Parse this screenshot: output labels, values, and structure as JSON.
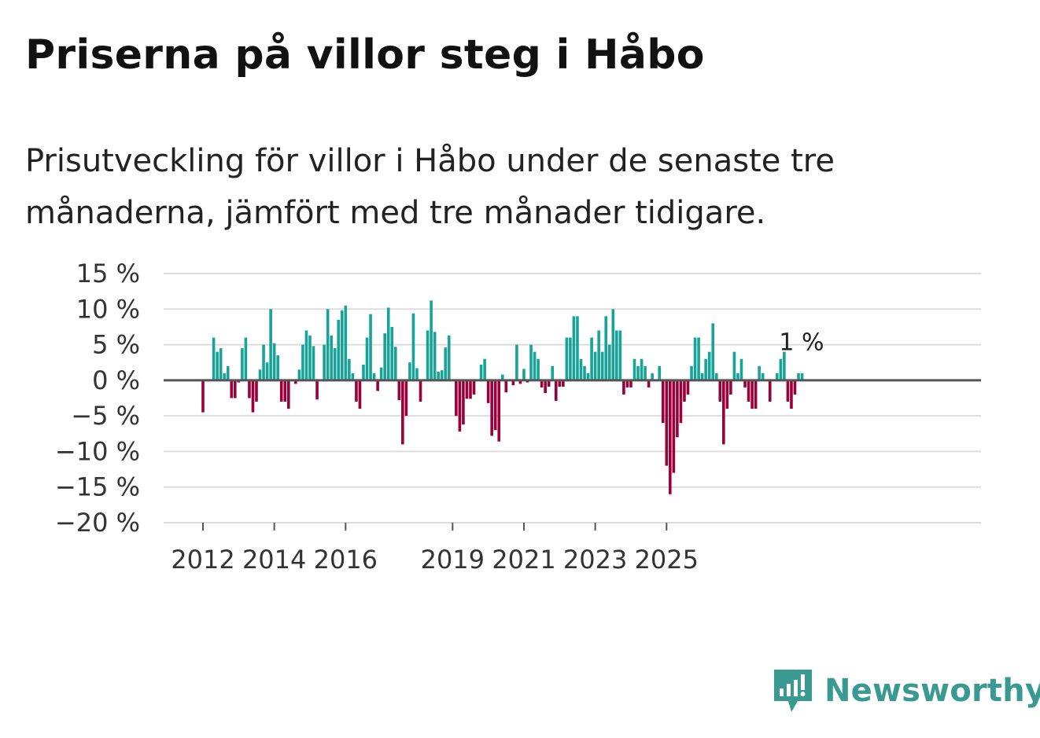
{
  "title": "Priserna på villor steg i Håbo",
  "subtitle": "Prisutveckling för villor i Håbo under de senaste tre månaderna, jämfört med tre månader tidigare.",
  "brand": "Newsworthy",
  "colors": {
    "positive": "#17a398",
    "negative": "#9b0038",
    "grid": "#dddddd",
    "zero_line": "#555555",
    "logo": "#3a9a92"
  },
  "chart_data": {
    "type": "bar",
    "title": "Priserna på villor steg i Håbo",
    "xlabel": "",
    "ylabel": "",
    "unit": "%",
    "ylim": [
      -20,
      15
    ],
    "y_ticks": [
      15,
      10,
      5,
      0,
      -5,
      -10,
      -15,
      -20
    ],
    "y_tick_labels": [
      "15 %",
      "10 %",
      "5 %",
      "0 %",
      "−5 %",
      "−10 %",
      "−15 %",
      "−20 %"
    ],
    "x_ticks": [
      "2012",
      "2014",
      "2016",
      "2019",
      "2021",
      "2023",
      "2025"
    ],
    "x_tick_index": [
      0,
      20,
      40,
      70,
      90,
      110,
      130
    ],
    "first_period": "2012-01",
    "frequency": "monthly",
    "values": [
      -4.5,
      0,
      0,
      6,
      4,
      4.5,
      1,
      2,
      -2.5,
      -2.5,
      -0.3,
      4.5,
      6,
      -2.5,
      -4.5,
      -3,
      1.5,
      5,
      2.5,
      10,
      5.2,
      3.5,
      -3,
      -3,
      -4,
      0,
      -0.5,
      1.5,
      5,
      7,
      6.3,
      4.8,
      -2.7,
      0,
      5,
      10,
      6.3,
      4.5,
      8.5,
      9.8,
      10.5,
      3,
      1,
      -3,
      -4,
      2.2,
      6,
      9.3,
      1,
      -1.5,
      1.8,
      6.6,
      10.2,
      7.5,
      4.7,
      -2.8,
      -9,
      -5,
      2.5,
      9.4,
      1.7,
      -3,
      0,
      7,
      11.2,
      6.8,
      1.2,
      1.4,
      4.6,
      6.3,
      0,
      -5,
      -7.2,
      -6.2,
      -2.6,
      -2.6,
      -2,
      0,
      2.2,
      3,
      -3.2,
      -7.8,
      -7,
      -8.6,
      0.8,
      -1.7,
      0,
      -0.7,
      5,
      -0.5,
      1.6,
      -0.3,
      5,
      4,
      3,
      -1,
      -1.8,
      -0.9,
      2,
      -2.9,
      -0.9,
      -0.9,
      6,
      6,
      9,
      9,
      3,
      2,
      1,
      6,
      4,
      7,
      4,
      9,
      5,
      10,
      7,
      7,
      -2,
      -1,
      -1,
      3,
      2,
      3,
      2,
      -1,
      1,
      0,
      2,
      -6,
      -12,
      -16,
      -13,
      -8,
      -6,
      -3,
      -2,
      2,
      6,
      6,
      1,
      3,
      4,
      8,
      1,
      -3,
      -9,
      -4,
      -2,
      4,
      1,
      3,
      -1,
      -3,
      -4,
      -4,
      2,
      1,
      0,
      -3,
      0,
      1,
      3,
      4,
      -3,
      -4,
      -2,
      1,
      1
    ],
    "annotation": "1 %",
    "positive_color": "#17a398",
    "negative_color": "#9b0038"
  }
}
